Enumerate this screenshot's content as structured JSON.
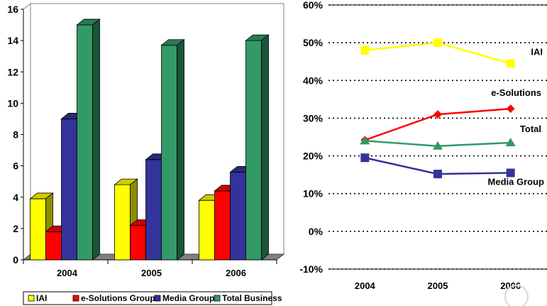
{
  "chart_data": [
    {
      "type": "bar",
      "categories": [
        "2004",
        "2005",
        "2006"
      ],
      "series": [
        {
          "name": "IAI",
          "values": [
            3.9,
            4.8,
            3.8
          ],
          "color": "#ffff00"
        },
        {
          "name": "e-Solutions Group",
          "values": [
            1.8,
            2.2,
            4.4
          ],
          "color": "#ff0000"
        },
        {
          "name": "Media Group",
          "values": [
            9.0,
            6.4,
            5.6
          ],
          "color": "#333399"
        },
        {
          "name": "Total Business",
          "values": [
            15.0,
            13.7,
            14.0
          ],
          "color": "#339966"
        }
      ],
      "ylim": [
        0,
        16
      ],
      "yticks": [
        "0",
        "2",
        "4",
        "6",
        "8",
        "10",
        "12",
        "14",
        "16"
      ],
      "legend_position": "bottom"
    },
    {
      "type": "line",
      "categories": [
        "2004",
        "2005",
        "2006"
      ],
      "series": [
        {
          "name": "IAI",
          "values": [
            48,
            50,
            44.5
          ],
          "color": "#ffff00",
          "marker": "square"
        },
        {
          "name": "e-Solutions",
          "values": [
            24.2,
            31,
            32.5
          ],
          "color": "#ff0000",
          "marker": "diamond"
        },
        {
          "name": "Total",
          "values": [
            24,
            22.6,
            23.5
          ],
          "color": "#339966",
          "marker": "triangle"
        },
        {
          "name": "Media Group",
          "values": [
            19.5,
            15.2,
            15.5
          ],
          "color": "#333399",
          "marker": "square"
        }
      ],
      "ylim": [
        -10,
        60
      ],
      "yticks": [
        "-10%",
        "0%",
        "10%",
        "20%",
        "30%",
        "40%",
        "50%",
        "60%"
      ],
      "grid": "horizontal-dotted",
      "legend_position": "inline-right"
    }
  ]
}
